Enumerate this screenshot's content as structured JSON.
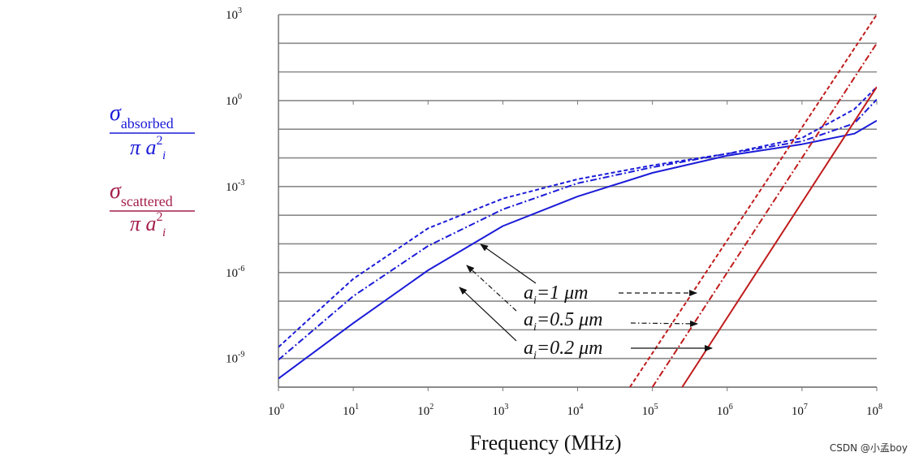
{
  "chart_data": {
    "type": "line",
    "xscale": "log",
    "yscale": "log",
    "xlabel": "Frequency (MHz)",
    "xlim": [
      1,
      100000000
    ],
    "ylim": [
      1e-10,
      1000
    ],
    "grid": "horizontal",
    "x_ticks": [
      {
        "base": "10",
        "exp": "0",
        "value": 1
      },
      {
        "base": "10",
        "exp": "1",
        "value": 10
      },
      {
        "base": "10",
        "exp": "2",
        "value": 100
      },
      {
        "base": "10",
        "exp": "3",
        "value": 1000
      },
      {
        "base": "10",
        "exp": "4",
        "value": 10000
      },
      {
        "base": "10",
        "exp": "5",
        "value": 100000
      },
      {
        "base": "10",
        "exp": "6",
        "value": 1000000
      },
      {
        "base": "10",
        "exp": "7",
        "value": 10000000
      },
      {
        "base": "10",
        "exp": "8",
        "value": 100000000
      }
    ],
    "y_ticks": [
      {
        "base": "10",
        "exp": "3",
        "value": 1000
      },
      {
        "base": "10",
        "exp": "0",
        "value": 1
      },
      {
        "base": "10",
        "exp": "-3",
        "value": 0.001
      },
      {
        "base": "10",
        "exp": "-6",
        "value": 1e-06
      },
      {
        "base": "10",
        "exp": "-9",
        "value": 1e-09
      }
    ],
    "y_label_absorbed": {
      "symbol": "σ",
      "subscript": "absorbed",
      "denominator": "π a",
      "denominator_sup": "2",
      "denominator_sub": "i"
    },
    "y_label_scattered": {
      "symbol": "σ",
      "subscript": "scattered",
      "denominator": "π a",
      "denominator_sup": "2",
      "denominator_sub": "i"
    },
    "series": [
      {
        "group": "absorbed",
        "size": "1",
        "color": "#1b1bd8",
        "dash": "dashed",
        "x": [
          1,
          10,
          100,
          1000,
          10000,
          100000,
          1000000,
          10000000,
          50000000,
          100000000
        ],
        "y": [
          2.5e-09,
          6e-07,
          3.5e-05,
          0.00038,
          0.0018,
          0.0055,
          0.014,
          0.05,
          0.5,
          3
        ]
      },
      {
        "group": "absorbed",
        "size": "0.5",
        "color": "#1b1bd8",
        "dash": "dashdot",
        "x": [
          1,
          10,
          100,
          1000,
          10000,
          100000,
          1000000,
          10000000,
          50000000,
          100000000
        ],
        "y": [
          9e-10,
          1.5e-07,
          8.5e-06,
          0.00016,
          0.0013,
          0.0047,
          0.014,
          0.038,
          0.16,
          1.1
        ]
      },
      {
        "group": "absorbed",
        "size": "0.2",
        "color": "#1b1bd8",
        "dash": "solid",
        "x": [
          1,
          10,
          100,
          1000,
          10000,
          100000,
          1000000,
          10000000,
          50000000,
          100000000
        ],
        "y": [
          2e-10,
          1.7e-08,
          1.2e-06,
          4.2e-05,
          0.00045,
          0.003,
          0.012,
          0.03,
          0.07,
          0.2
        ]
      },
      {
        "group": "scattered",
        "size": "1",
        "color": "#c01c1c",
        "dash": "dashed",
        "x": [
          50000,
          100000000
        ],
        "y": [
          1e-10,
          1000
        ]
      },
      {
        "group": "scattered",
        "size": "0.5",
        "color": "#c01c1c",
        "dash": "dashdot",
        "x": [
          100000,
          100000000
        ],
        "y": [
          1e-10,
          100
        ]
      },
      {
        "group": "scattered",
        "size": "0.2",
        "color": "#c01c1c",
        "dash": "solid",
        "x": [
          250000,
          100000000
        ],
        "y": [
          1e-10,
          3
        ]
      }
    ],
    "annotations": [
      {
        "prefix": "a",
        "sub": "i",
        "text": "=1 μm",
        "points_to": [
          "absorbed-1",
          "scattered-1"
        ]
      },
      {
        "prefix": "a",
        "sub": "i",
        "text": "=0.5 μm",
        "points_to": [
          "absorbed-0.5",
          "scattered-0.5"
        ]
      },
      {
        "prefix": "a",
        "sub": "i",
        "text": "=0.2 μm",
        "points_to": [
          "absorbed-0.2",
          "scattered-0.2"
        ]
      }
    ]
  },
  "watermark": "CSDN @小孟boy"
}
